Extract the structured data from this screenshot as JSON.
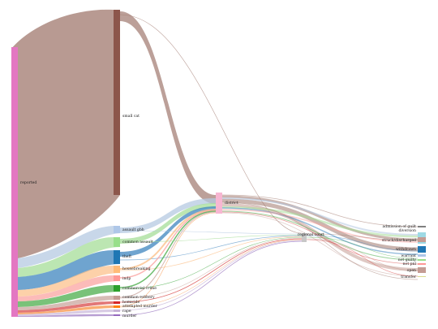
{
  "diagram": {
    "type": "sankey",
    "nodes": [
      {
        "id": "reported",
        "label": "reported",
        "color": "#e377c2"
      },
      {
        "id": "small_cat",
        "label": "small cat",
        "color": "#8c564b"
      },
      {
        "id": "assault",
        "label": "assault gbh",
        "color": "#aec7e8"
      },
      {
        "id": "common_assault",
        "label": "common assault",
        "color": "#98df8a"
      },
      {
        "id": "theft",
        "label": "theft",
        "color": "#1f77b4"
      },
      {
        "id": "housebreaking",
        "label": "housebreaking",
        "color": "#ffbb78"
      },
      {
        "id": "indp",
        "label": "indp",
        "color": "#ff9896"
      },
      {
        "id": "commercial_crime",
        "label": "commercial crime",
        "color": "#2ca02c"
      },
      {
        "id": "common_robbery",
        "label": "common robbery",
        "color": "#c49c94"
      },
      {
        "id": "homicide",
        "label": "homicide",
        "color": "#d62728"
      },
      {
        "id": "attempted_murder",
        "label": "attempted murder",
        "color": "#ff7f0e"
      },
      {
        "id": "rape",
        "label": "rape",
        "color": "#c5b0d5"
      },
      {
        "id": "murder",
        "label": "murder",
        "color": "#9467bd"
      },
      {
        "id": "district",
        "label": "district",
        "color": "#f7b6d2"
      },
      {
        "id": "regional_court",
        "label": "regional court",
        "color": "#c7c7c7"
      },
      {
        "id": "admission_of_guilt",
        "label": "admission of guilt",
        "color": "#7f7f7f"
      },
      {
        "id": "diversion",
        "label": "diversion",
        "color": "#9edae5"
      },
      {
        "id": "struck_discharged",
        "label": "struck/discharged",
        "color": "#c49c94"
      },
      {
        "id": "withdrawn",
        "label": "withdrawn",
        "color": "#1f77b4"
      },
      {
        "id": "warrant",
        "label": "warrant",
        "color": "#aec7e8"
      },
      {
        "id": "not_guilty",
        "label": "not guilty",
        "color": "#98df8a"
      },
      {
        "id": "not_pnl",
        "label": "not pnl",
        "color": "#ff9896"
      },
      {
        "id": "open",
        "label": "open",
        "color": "#c49c94"
      },
      {
        "id": "transfer",
        "label": "transfer",
        "color": "#dbdb8d"
      }
    ]
  }
}
